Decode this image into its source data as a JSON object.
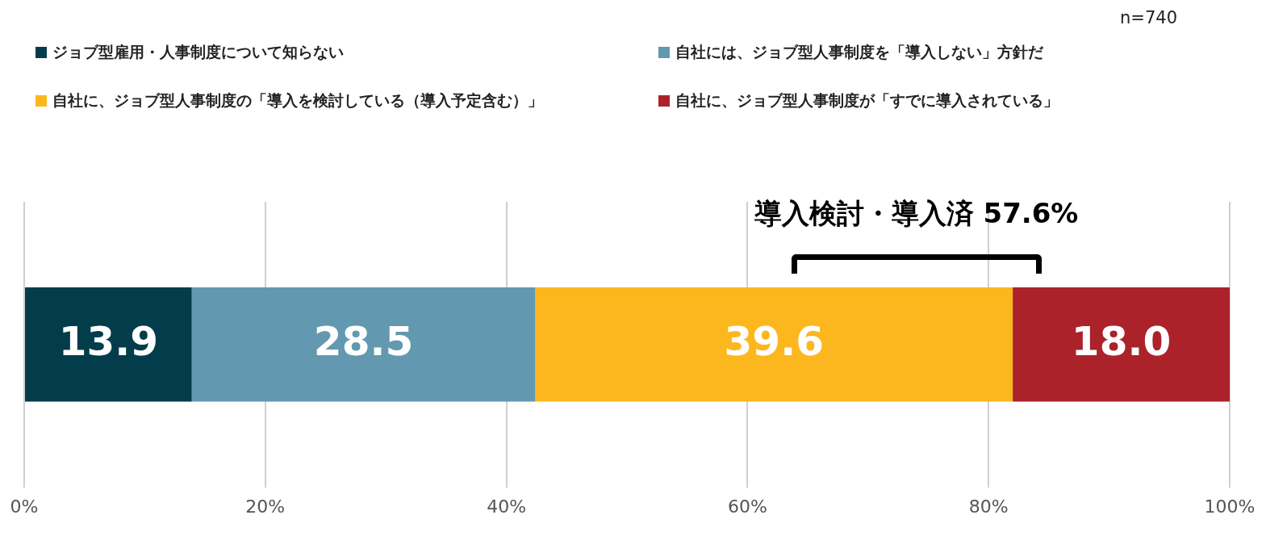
{
  "chart_data": {
    "type": "bar",
    "orientation": "horizontal",
    "stacked": true,
    "categories": [
      null
    ],
    "series": [
      {
        "name": "ジョブ型雇用・人事制度について知らない",
        "color": "#033c4b",
        "values": [
          13.9
        ],
        "value_labels": [
          "13.9"
        ]
      },
      {
        "name": "自社には、ジョブ型人事制度を「導入しない」方針だ",
        "color": "#6299b0",
        "values": [
          28.5
        ],
        "value_labels": [
          "28.5"
        ]
      },
      {
        "name": "自社に、ジョブ型人事制度の「導入を検討している（導入予定含む）」",
        "color": "#fdb71e",
        "values": [
          39.6
        ],
        "value_labels": [
          "39.6"
        ]
      },
      {
        "name": "自社に、ジョブ型人事制度が「すでに導入されている」",
        "color": "#ab222b",
        "values": [
          18.0
        ],
        "value_labels": [
          "18.0"
        ]
      }
    ],
    "xlim": [
      0,
      100
    ],
    "xticks": [
      {
        "value": 0,
        "label": "0%"
      },
      {
        "value": 20,
        "label": "20%"
      },
      {
        "value": 40,
        "label": "40%"
      },
      {
        "value": 60,
        "label": "60%"
      },
      {
        "value": 80,
        "label": "80%"
      },
      {
        "value": 100,
        "label": "100%"
      }
    ],
    "grid": "x",
    "legend": "top",
    "annotations": [
      "n=740",
      "導入検討・導入済 57.6%"
    ]
  }
}
